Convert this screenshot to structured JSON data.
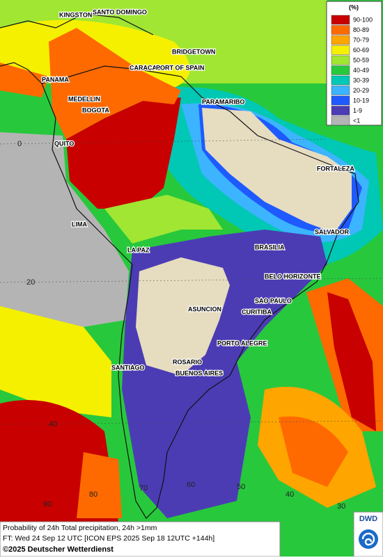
{
  "legend": {
    "title": "(%)",
    "items": [
      {
        "label": "90-100",
        "color": "#c80000"
      },
      {
        "label": "80-89",
        "color": "#ff6a00"
      },
      {
        "label": "70-79",
        "color": "#ffa500"
      },
      {
        "label": "60-69",
        "color": "#f5f000"
      },
      {
        "label": "50-59",
        "color": "#a0e632"
      },
      {
        "label": "40-49",
        "color": "#28c83c"
      },
      {
        "label": "30-39",
        "color": "#00c8b4"
      },
      {
        "label": "20-29",
        "color": "#3cb4ff"
      },
      {
        "label": "10-19",
        "color": "#1e5aff"
      },
      {
        "label": "1-9",
        "color": "#4b3cb4"
      },
      {
        "label": "<1",
        "color": "#b4b4b4"
      }
    ]
  },
  "cities": [
    "KINGSTON",
    "SANTO DOMINGO",
    "BRIDGETOWN",
    "CARACAS",
    "PORT OF SPAIN",
    "PANAMA",
    "MEDELLIN",
    "BOGOTA",
    "PARAMARIBO",
    "QUITO",
    "FORTALEZA",
    "LIMA",
    "SALVADOR",
    "LA PAZ",
    "BRASILIA",
    "BELO HORIZONTE",
    "SAO PAULO",
    "ASUNCION",
    "CURITIBA",
    "PORTO ALEGRE",
    "SANTIAGO",
    "ROSARIO",
    "BUENOS AIRES"
  ],
  "grid_labels": [
    "0",
    "20",
    "40",
    "90",
    "80",
    "70",
    "60",
    "50",
    "40",
    "30"
  ],
  "footer": {
    "line1": "Probability of 24h Total precipitation, 24h >1mm",
    "line2": "FT: Wed 24 Sep 12 UTC [ICON EPS 2025 Sep 18 12UTC +144h]",
    "line3": "©2025 Deutscher Wetterdienst"
  },
  "logo": "DWD"
}
